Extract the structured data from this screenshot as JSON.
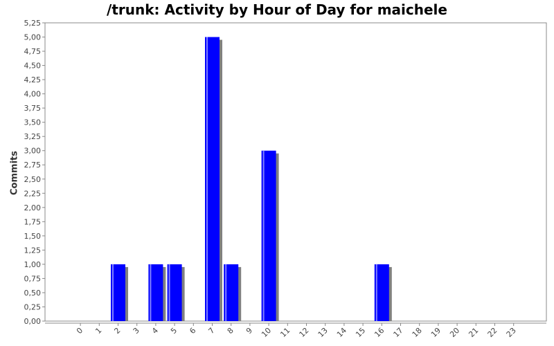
{
  "chart_data": {
    "type": "bar",
    "title": "/trunk: Activity by Hour of Day for maichele",
    "xlabel": "",
    "ylabel": "Commits",
    "categories": [
      "0",
      "1",
      "2",
      "3",
      "4",
      "5",
      "6",
      "7",
      "8",
      "9",
      "10",
      "11",
      "12",
      "13",
      "14",
      "15",
      "16",
      "17",
      "18",
      "19",
      "20",
      "21",
      "22",
      "23"
    ],
    "values": [
      0,
      0,
      1,
      0,
      1,
      1,
      0,
      5,
      1,
      0,
      3,
      0,
      0,
      0,
      0,
      0,
      1,
      0,
      0,
      0,
      0,
      0,
      0,
      0
    ],
    "ylim": [
      0,
      5.25
    ],
    "ytick_step": 0.25,
    "ytick_labels": [
      "0,00",
      "0,25",
      "0,50",
      "0,75",
      "1,00",
      "1,25",
      "1,50",
      "1,75",
      "2,00",
      "2,25",
      "2,50",
      "2,75",
      "3,00",
      "3,25",
      "3,50",
      "3,75",
      "4,00",
      "4,25",
      "4,50",
      "4,75",
      "5,00",
      "5,25"
    ],
    "colors": {
      "bar": "#0000ff",
      "bar_highlight": "#8080ff",
      "shadow": "#808080",
      "axis": "#888888"
    },
    "grid": false,
    "legend": "none"
  }
}
